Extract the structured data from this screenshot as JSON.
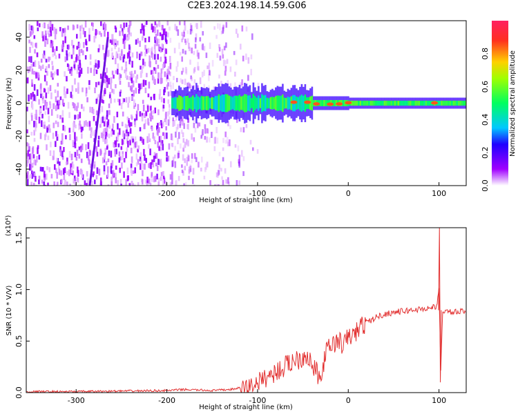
{
  "title": "C2E3.2024.198.14.59.G06",
  "colors": {
    "snr_line": "#e23030",
    "spectrogram_ridge": "#6f10e0",
    "axis": "#000000"
  },
  "chart_data": [
    {
      "type": "heatmap",
      "xlabel": "Height of straight line (km)",
      "ylabel": "Frequency (Hz)",
      "xlim": [
        -355,
        130
      ],
      "ylim": [
        -50,
        50
      ],
      "x_ticks": [
        {
          "value": -300,
          "label": "-300"
        },
        {
          "value": -200,
          "label": "-200"
        },
        {
          "value": -100,
          "label": "-100"
        },
        {
          "value": 0,
          "label": "0"
        },
        {
          "value": 100,
          "label": "100"
        }
      ],
      "y_ticks": [
        {
          "value": -40,
          "label": "-40"
        },
        {
          "value": -20,
          "label": "-20"
        },
        {
          "value": 0,
          "label": "0"
        },
        {
          "value": 20,
          "label": "20"
        },
        {
          "value": 40,
          "label": "40"
        }
      ],
      "colorbar": {
        "label": "Normalized spectral amplitude",
        "range": [
          0,
          1
        ],
        "ticks": [
          {
            "value": 0.0,
            "label": "0.0"
          },
          {
            "value": 0.2,
            "label": "0.2"
          },
          {
            "value": 0.4,
            "label": "0.4"
          },
          {
            "value": 0.6,
            "label": "0.6"
          },
          {
            "value": 0.8,
            "label": "0.8"
          }
        ]
      },
      "features": [
        {
          "kind": "noise",
          "x_range": [
            -355,
            -135
          ],
          "freq_range": [
            -50,
            50
          ],
          "amplitude": 0.05
        },
        {
          "kind": "diagonal-line",
          "from": [
            -285,
            -50
          ],
          "to": [
            -265,
            40
          ],
          "amplitude": 0.2
        },
        {
          "kind": "signal-band",
          "x_range": [
            -195,
            130
          ],
          "freq_center": 0,
          "amplitude": 0.7
        }
      ]
    },
    {
      "type": "line",
      "xlabel": "Height of straight line (km)",
      "ylabel": "SNR (10 * V/V)",
      "scale_label": "(x10⁴)",
      "xlim": [
        -355,
        130
      ],
      "ylim": [
        0,
        1.6
      ],
      "x_ticks": [
        {
          "value": -300,
          "label": "-300"
        },
        {
          "value": -200,
          "label": "-200"
        },
        {
          "value": -100,
          "label": "-100"
        },
        {
          "value": 0,
          "label": "0"
        },
        {
          "value": 100,
          "label": "100"
        }
      ],
      "y_ticks": [
        {
          "value": 0.0,
          "label": "0.0"
        },
        {
          "value": 0.5,
          "label": "0.5"
        },
        {
          "value": 1.0,
          "label": "1.0"
        },
        {
          "value": 1.5,
          "label": "1.5"
        }
      ],
      "series": [
        {
          "x": [
            -355,
            -300,
            -250,
            -200,
            -180,
            -150,
            -130,
            -110,
            -100,
            -90,
            -80,
            -70,
            -60,
            -50,
            -45,
            -40,
            -35,
            -30,
            -27,
            -25,
            -20,
            -15,
            -10,
            -5,
            0,
            5,
            10,
            15,
            20,
            25,
            30,
            40,
            50,
            60,
            70,
            80,
            90,
            95,
            98,
            100,
            102,
            104,
            110,
            120,
            130
          ],
          "y": [
            0.01,
            0.01,
            0.015,
            0.02,
            0.03,
            0.02,
            0.03,
            0.06,
            0.1,
            0.15,
            0.2,
            0.25,
            0.32,
            0.35,
            0.38,
            0.25,
            0.2,
            0.1,
            0.3,
            0.38,
            0.45,
            0.48,
            0.5,
            0.45,
            0.55,
            0.55,
            0.6,
            0.65,
            0.68,
            0.7,
            0.73,
            0.76,
            0.78,
            0.79,
            0.8,
            0.81,
            0.82,
            0.83,
            0.85,
            1.0,
            0.2,
            0.8,
            0.78,
            0.78,
            0.79
          ]
        }
      ]
    }
  ]
}
